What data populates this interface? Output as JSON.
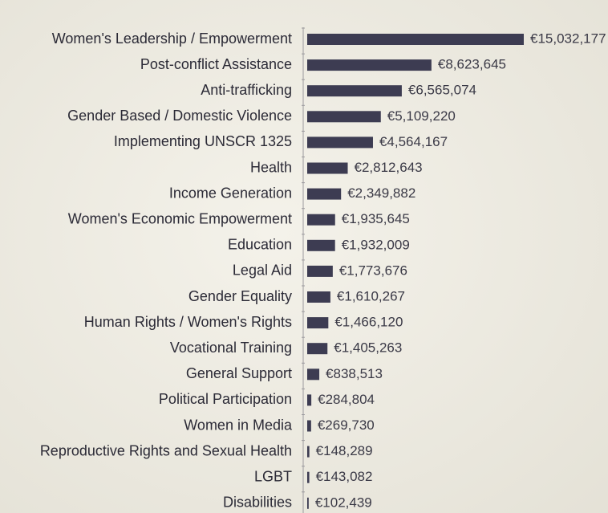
{
  "chart_data": {
    "type": "barh",
    "categories": [
      "Women's Leadership / Empowerment",
      "Post-conflict Assistance",
      "Anti-trafficking",
      "Gender Based / Domestic Violence",
      "Implementing UNSCR 1325",
      "Health",
      "Income Generation",
      "Women's Economic Empowerment",
      "Education",
      "Legal Aid",
      "Gender Equality",
      "Human Rights / Women's Rights",
      "Vocational Training",
      "General Support",
      "Political Participation",
      "Women in Media",
      "Reproductive Rights and Sexual Health",
      "LGBT",
      "Disabilities"
    ],
    "values": [
      15032177,
      8623645,
      6565074,
      5109220,
      4564167,
      2812643,
      2349882,
      1935645,
      1932009,
      1773676,
      1610267,
      1466120,
      1405263,
      838513,
      284804,
      269730,
      148289,
      143082,
      102439
    ],
    "value_labels": [
      "€15,032,177",
      "€8,623,645",
      "€6,565,074",
      "€5,109,220",
      "€4,564,167",
      "€2,812,643",
      "€2,349,882",
      "€1,935,645",
      "€1,932,009",
      "€1,773,676",
      "€1,610,267",
      "€1,466,120",
      "€1,405,263",
      "€838,513",
      "€284,804",
      "€269,730",
      "€148,289",
      "€143,082",
      "€102,439"
    ],
    "color": "#3d3c52"
  }
}
